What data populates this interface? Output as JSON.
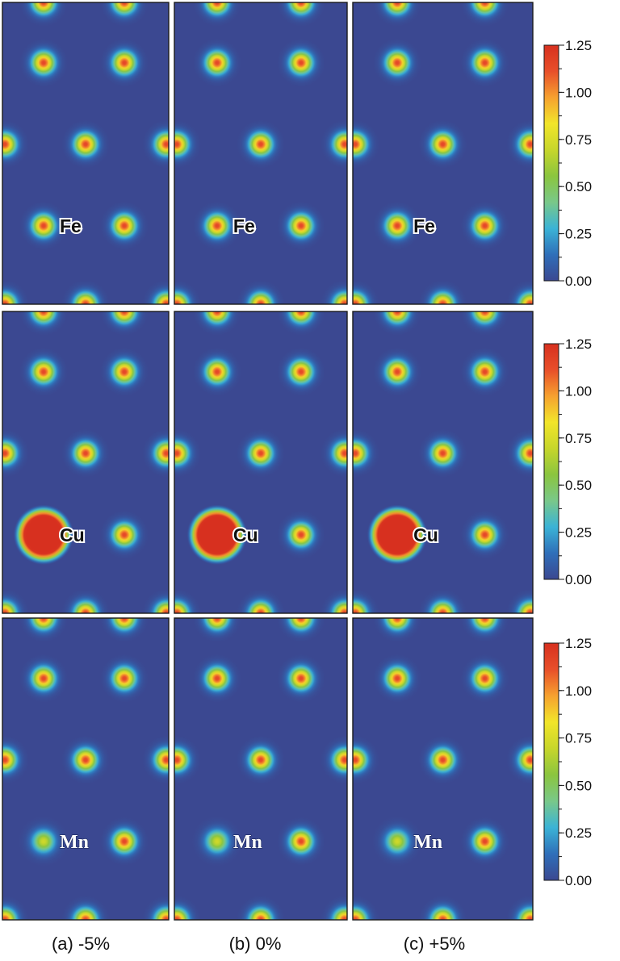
{
  "chart_data": {
    "type": "heatmap",
    "description_grid": "3 rows (dopant element) x 3 columns (strain) of charge density contour maps",
    "columns": [
      {
        "label": "(a) -5%",
        "strain_percent": -5
      },
      {
        "label": "(b) 0%",
        "strain_percent": 0
      },
      {
        "label": "(c) +5%",
        "strain_percent": 5
      }
    ],
    "rows": [
      {
        "element": "Fe",
        "label_style": "sans",
        "dopant_peak": 1.15,
        "dopant_blob_scale": 1.0
      },
      {
        "element": "Cu",
        "label_style": "sans",
        "dopant_peak": 1.25,
        "dopant_blob_scale": 1.25,
        "dopant_saturated": true
      },
      {
        "element": "Mn",
        "label_style": "serif",
        "dopant_peak": 0.72,
        "dopant_blob_scale": 1.05
      }
    ],
    "colorbar": {
      "min": 0.0,
      "max": 1.25,
      "tick_labels": [
        "1.25",
        "1.00",
        "0.75",
        "0.50",
        "0.25",
        "0.00"
      ],
      "tick_values": [
        1.25,
        1.0,
        0.75,
        0.5,
        0.25,
        0.0
      ],
      "colormap": [
        "#3b4891",
        "#2f6fb9",
        "#3bb3d6",
        "#79c88a",
        "#8bc53f",
        "#c7d62b",
        "#f2e52a",
        "#f6a12f",
        "#e84f2a",
        "#d7301f"
      ]
    },
    "background_color": "#3b4891",
    "host_atom_peak": 1.15
  }
}
